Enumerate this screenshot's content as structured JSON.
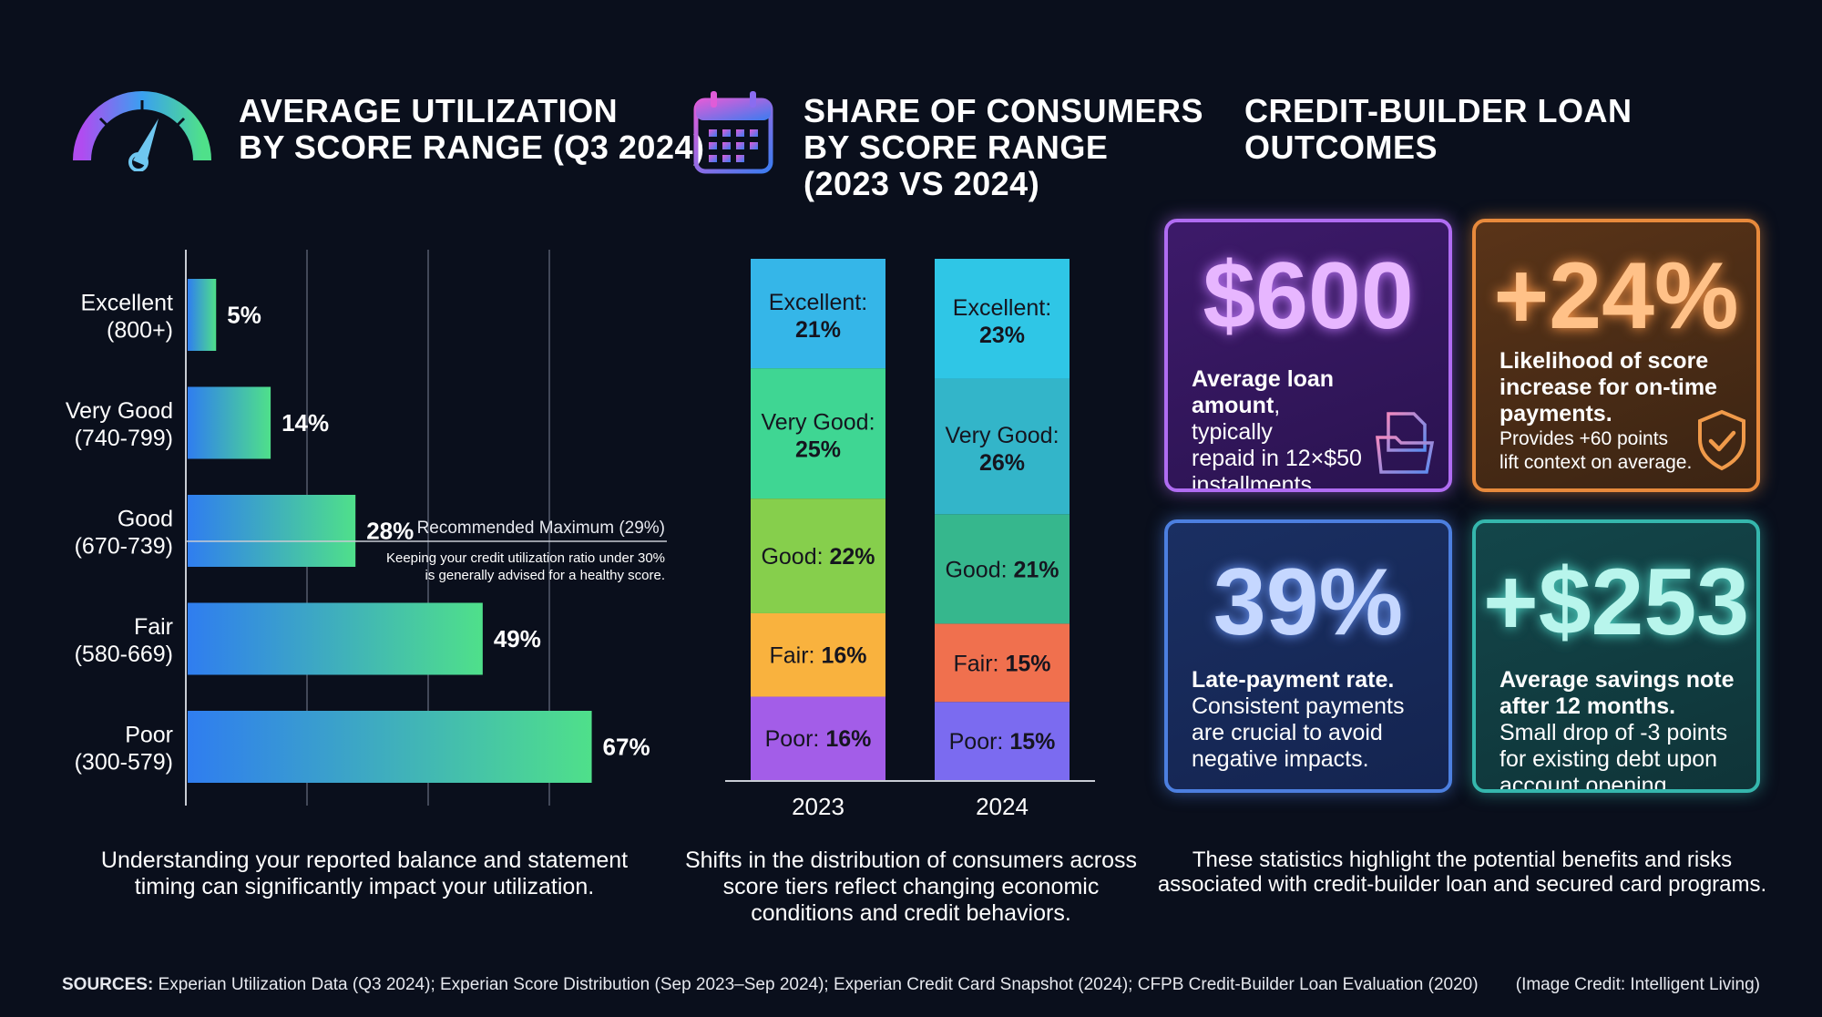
{
  "left_panel": {
    "title_line1": "AVERAGE UTILIZATION",
    "title_line2": "BY SCORE RANGE (Q3 2024)",
    "caption_line1": "Understanding your reported balance and statement",
    "caption_line2": "timing can significantly impact your utilization.",
    "reference_label": "Recommended Maximum (29%)",
    "reference_note_line1": "Keeping your credit utilization ratio under 30%",
    "reference_note_line2": "is generally advised for a healthy score."
  },
  "middle_panel": {
    "title_line1": "SHARE OF CONSUMERS",
    "title_line2": "BY SCORE RANGE",
    "title_line3": "(2023 VS 2024)",
    "caption_line1": "Shifts in the distribution of consumers across",
    "caption_line2": "score tiers reflect changing economic",
    "caption_line3": "conditions and credit behaviors."
  },
  "right_panel": {
    "title_line1": "CREDIT-BUILDER LOAN",
    "title_line2": "OUTCOMES",
    "caption_line1": "These statistics highlight the potential benefits and risks",
    "caption_line2": "associated with credit-builder loan and secured card programs.",
    "cards": [
      {
        "value": "$600",
        "bold1": "Average loan",
        "bold2": "amount",
        "text1": ", typically",
        "text2": "repaid in 12×$50",
        "text3": "installments.",
        "icon": "document-folder-icon",
        "color": "#b06cf2"
      },
      {
        "value": "+24%",
        "bold1": "Likelihood of score",
        "bold2": "increase for on-time",
        "bold3": "payments.",
        "text1": "Provides +60 points",
        "text2": "lift context on average.",
        "icon": "shield-check-icon",
        "color": "#e88a3c"
      },
      {
        "value": "39%",
        "bold1": "Late-payment rate.",
        "text1": "Consistent payments",
        "text2": "are crucial to avoid",
        "text3": "negative impacts.",
        "color": "#4c7fe0"
      },
      {
        "value": "+$253",
        "bold1": "Average savings note",
        "bold2": "after 12 months.",
        "text1": "Small drop of -3 points",
        "text2": "for existing debt upon",
        "text3": "account opening.",
        "color": "#35b7ad"
      }
    ]
  },
  "footer": {
    "sources_label": "SOURCES:",
    "sources_text": "Experian Utilization Data (Q3 2024); Experian Score Distribution (Sep 2023–Sep 2024); Experian Credit Card Snapshot (2024); CFPB Credit-Builder Loan Evaluation (2020)",
    "credit": "(Image Credit: Intelligent Living)"
  },
  "icons": {
    "left": "speedometer-icon",
    "middle": "calendar-icon"
  },
  "colors": {
    "background": "#0a0f1c",
    "bar_gradient_start": "#2f7df0",
    "bar_gradient_end": "#4fe08a"
  },
  "chart_data": [
    {
      "type": "bar",
      "orientation": "horizontal",
      "title": "AVERAGE UTILIZATION BY SCORE RANGE (Q3 2024)",
      "categories": [
        [
          "Excellent",
          "(800+)"
        ],
        [
          "Very Good",
          "(740-799)"
        ],
        [
          "Good",
          "(670-739)"
        ],
        [
          "Fair",
          "(580-669)"
        ],
        [
          "Poor",
          "(300-579)"
        ]
      ],
      "values": [
        5,
        14,
        28,
        49,
        67
      ],
      "value_labels": [
        "5%",
        "14%",
        "28%",
        "49%",
        "67%"
      ],
      "xlim": [
        0,
        80
      ],
      "gridlines_at": [
        20,
        40,
        60
      ],
      "reference_line": {
        "value": 29
      },
      "grid": true
    },
    {
      "type": "bar",
      "stacked": true,
      "title": "SHARE OF CONSUMERS BY SCORE RANGE (2023 VS 2024)",
      "categories": [
        "2023",
        "2024"
      ],
      "series": [
        {
          "name": "Poor",
          "values": [
            16,
            15
          ],
          "labels": [
            "Poor: 16%",
            "Poor: 15%"
          ],
          "colors": [
            "#a35de8",
            "#7b6bf0"
          ]
        },
        {
          "name": "Fair",
          "values": [
            16,
            15
          ],
          "labels": [
            "Fair: 16%",
            "Fair: 15%"
          ],
          "colors": [
            "#f9b23e",
            "#f0704e"
          ]
        },
        {
          "name": "Good",
          "values": [
            22,
            21
          ],
          "labels": [
            "Good: 22%",
            "Good: 21%"
          ],
          "colors": [
            "#86cf4c",
            "#36b78d"
          ]
        },
        {
          "name": "Very Good",
          "values": [
            25,
            26
          ],
          "labels": [
            "Very Good:",
            "Very Good:"
          ],
          "pct_labels": [
            "25%",
            "26%"
          ],
          "colors": [
            "#3fd693",
            "#33b5c9"
          ]
        },
        {
          "name": "Excellent",
          "values": [
            21,
            23
          ],
          "labels": [
            "Excellent:",
            "Excellent:"
          ],
          "pct_labels": [
            "21%",
            "23%"
          ],
          "colors": [
            "#35b6e8",
            "#2fc6e6"
          ]
        }
      ],
      "ylim": [
        0,
        100
      ]
    }
  ]
}
